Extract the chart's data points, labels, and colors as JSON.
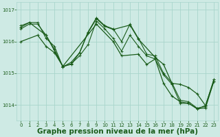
{
  "background_color": "#ceeae4",
  "grid_color": "#a8d5cc",
  "line_color": "#1a5c1a",
  "xlabel": "Graphe pression niveau de la mer (hPa)",
  "xlabel_fontsize": 7.5,
  "ylim": [
    1013.5,
    1017.25
  ],
  "xlim": [
    -0.5,
    23.5
  ],
  "yticks": [
    1014,
    1015,
    1016,
    1017
  ],
  "xticks": [
    0,
    1,
    2,
    3,
    4,
    5,
    6,
    7,
    8,
    9,
    10,
    11,
    12,
    13,
    14,
    15,
    16,
    17,
    18,
    19,
    20,
    21,
    22,
    23
  ],
  "line1_x": [
    0,
    1,
    2,
    3,
    4,
    5,
    6,
    7,
    8,
    9,
    10,
    11,
    12,
    13,
    14,
    15,
    16,
    17,
    18,
    19,
    20,
    21,
    22,
    23
  ],
  "line1_y": [
    1016.5,
    1016.6,
    1016.6,
    1016.1,
    1015.85,
    1015.2,
    1015.35,
    1015.65,
    1016.3,
    1016.75,
    1016.5,
    1016.4,
    1016.0,
    1016.55,
    1016.1,
    1015.6,
    1015.55,
    1015.0,
    1014.7,
    1014.15,
    1014.1,
    1013.9,
    1013.95,
    1014.8
  ],
  "line2_x": [
    0,
    1,
    2,
    3,
    4,
    5,
    6,
    7,
    8,
    9,
    10,
    11,
    12,
    13,
    14,
    15,
    16,
    17,
    18,
    19,
    20,
    21,
    22,
    23
  ],
  "line2_y": [
    1016.4,
    1016.55,
    1016.55,
    1016.2,
    1015.75,
    1015.2,
    1015.3,
    1015.55,
    1015.9,
    1016.65,
    1016.4,
    1016.1,
    1015.7,
    1016.2,
    1015.85,
    1015.55,
    1015.45,
    1014.95,
    1014.65,
    1014.05,
    1014.05,
    1013.88,
    1013.9,
    1014.75
  ],
  "line3_x": [
    0,
    1,
    3,
    5,
    6,
    7,
    8,
    9,
    10,
    11,
    13,
    14,
    16,
    17,
    18,
    19,
    20,
    21,
    22,
    23
  ],
  "line3_y": [
    1016.45,
    1016.6,
    1016.2,
    1015.22,
    1015.28,
    1015.65,
    1016.28,
    1016.72,
    1016.48,
    1016.38,
    1016.52,
    1016.08,
    1015.5,
    1015.28,
    1014.68,
    1014.65,
    1014.55,
    1014.35,
    1013.98,
    1014.8
  ],
  "line4_x": [
    0,
    2,
    3,
    4,
    5,
    9,
    11,
    12,
    14,
    15,
    16,
    17,
    18,
    19,
    20,
    21,
    22,
    23
  ],
  "line4_y": [
    1016.0,
    1016.2,
    1015.85,
    1015.65,
    1015.22,
    1016.55,
    1016.0,
    1015.55,
    1015.6,
    1015.28,
    1015.45,
    1014.68,
    1014.28,
    1014.1,
    1014.05,
    1013.88,
    1013.98,
    1014.75
  ]
}
